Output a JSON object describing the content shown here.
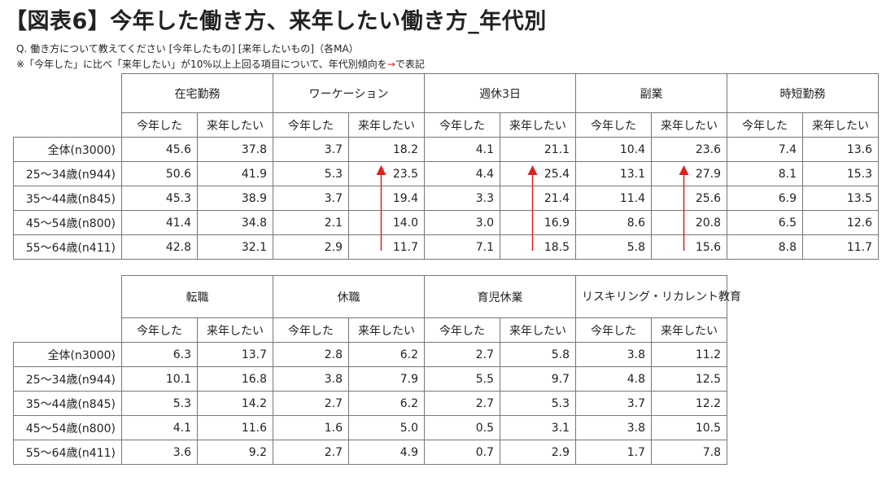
{
  "title": "【図表6】今年した働き方、来年したい働き方_年代別",
  "question": "Q. 働き方について教えてください [今年したもの] [来年したいもの]（各MA）",
  "note_before": "※「今年した」に比べ「来年したい」が10%以上上回る項目について、年代別傾向を",
  "note_arrow": "→",
  "note_after": "で表記",
  "colors": {
    "arrow": "#e02020",
    "border": "#777777"
  },
  "chart_data": [
    {
      "type": "table",
      "column_groups": [
        "在宅勤務",
        "ワーケーション",
        "週休3日",
        "副業",
        "時短勤務"
      ],
      "sub_columns": [
        "今年した",
        "来年したい"
      ],
      "row_labels": [
        "全体(n3000)",
        "25～34歳(n944)",
        "35～44歳(n845)",
        "45～54歳(n800)",
        "55～64歳(n411)"
      ],
      "values": [
        [
          "45.6",
          "37.8",
          "3.7",
          "18.2",
          "4.1",
          "21.1",
          "10.4",
          "23.6",
          "7.4",
          "13.6"
        ],
        [
          "50.6",
          "41.9",
          "5.3",
          "23.5",
          "4.4",
          "25.4",
          "13.1",
          "27.9",
          "8.1",
          "15.3"
        ],
        [
          "45.3",
          "38.9",
          "3.7",
          "19.4",
          "3.3",
          "21.4",
          "11.4",
          "25.6",
          "6.9",
          "13.5"
        ],
        [
          "41.4",
          "34.8",
          "2.1",
          "14.0",
          "3.0",
          "16.9",
          "8.6",
          "20.8",
          "6.5",
          "12.6"
        ],
        [
          "42.8",
          "32.1",
          "2.9",
          "11.7",
          "7.1",
          "18.5",
          "5.8",
          "15.6",
          "8.8",
          "11.7"
        ]
      ],
      "trend_arrows": [
        {
          "group": "ワーケーション",
          "from_row": "55～64歳(n411)",
          "to_row": "25～34歳(n944)"
        },
        {
          "group": "週休3日",
          "from_row": "55～64歳(n411)",
          "to_row": "25～34歳(n944)"
        },
        {
          "group": "副業",
          "from_row": "55～64歳(n411)",
          "to_row": "25～34歳(n944)"
        }
      ]
    },
    {
      "type": "table",
      "column_groups": [
        "転職",
        "休職",
        "育児休業",
        "リスキリング・リカレント教育"
      ],
      "sub_columns": [
        "今年した",
        "来年したい"
      ],
      "row_labels": [
        "全体(n3000)",
        "25～34歳(n944)",
        "35～44歳(n845)",
        "45～54歳(n800)",
        "55～64歳(n411)"
      ],
      "values": [
        [
          "6.3",
          "13.7",
          "2.8",
          "6.2",
          "2.7",
          "5.8",
          "3.8",
          "11.2"
        ],
        [
          "10.1",
          "16.8",
          "3.8",
          "7.9",
          "5.5",
          "9.7",
          "4.8",
          "12.5"
        ],
        [
          "5.3",
          "14.2",
          "2.7",
          "6.2",
          "2.7",
          "5.3",
          "3.7",
          "12.2"
        ],
        [
          "4.1",
          "11.6",
          "1.6",
          "5.0",
          "0.5",
          "3.1",
          "3.8",
          "10.5"
        ],
        [
          "3.6",
          "9.2",
          "2.7",
          "4.9",
          "0.7",
          "2.9",
          "1.7",
          "7.8"
        ]
      ]
    }
  ]
}
